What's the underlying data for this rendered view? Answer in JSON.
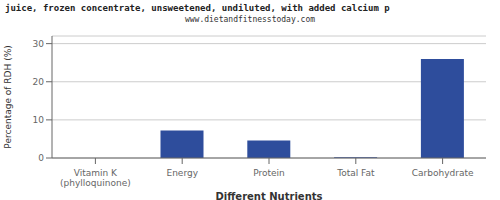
{
  "chart_data": {
    "type": "bar",
    "title": "juice, frozen concentrate, unsweetened, undiluted, with added calcium p",
    "subtitle": "www.dietandfitnesstoday.com",
    "categories": [
      "Vitamin K (phylloquinone)",
      "Energy",
      "Protein",
      "Total Fat",
      "Carbohydrate"
    ],
    "values": [
      0,
      7.2,
      4.6,
      0.2,
      26.0
    ],
    "color": "#2e4d9c",
    "xlabel": "Different Nutrients",
    "ylabel": "Percentage of RDH (%)",
    "ylim": [
      0,
      32
    ],
    "yticks": [
      0,
      10,
      20,
      30
    ],
    "grid": true
  }
}
